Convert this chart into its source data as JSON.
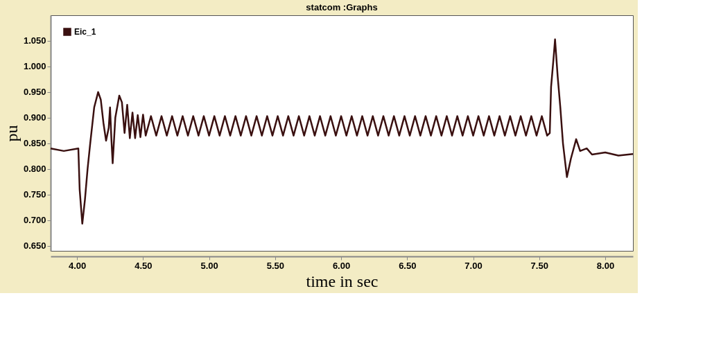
{
  "chart_data": {
    "type": "line",
    "title": "statcom :Graphs",
    "xlabel": "time in sec",
    "ylabel": "pu",
    "legend": "top left",
    "grid": false,
    "marker": "none",
    "line_style": "solid",
    "xlim": [
      3.8,
      8.21
    ],
    "ylim": [
      0.64,
      1.1
    ],
    "xticks": [
      {
        "value": 4,
        "label": "4.00"
      },
      {
        "value": 4.5,
        "label": "4.50"
      },
      {
        "value": 5,
        "label": "5.00"
      },
      {
        "value": 5.5,
        "label": "5.50"
      },
      {
        "value": 6,
        "label": "6.00"
      },
      {
        "value": 6.5,
        "label": "6.50"
      },
      {
        "value": 7,
        "label": "7.00"
      },
      {
        "value": 7.5,
        "label": "7.50"
      },
      {
        "value": 8,
        "label": "8.00"
      }
    ],
    "yticks": [
      {
        "value": 0.65,
        "label": "0.650"
      },
      {
        "value": 0.7,
        "label": "0.700"
      },
      {
        "value": 0.75,
        "label": "0.750"
      },
      {
        "value": 0.8,
        "label": "0.800"
      },
      {
        "value": 0.85,
        "label": "0.850"
      },
      {
        "value": 0.9,
        "label": "0.900"
      },
      {
        "value": 0.95,
        "label": "0.950"
      },
      {
        "value": 1.0,
        "label": "1.000"
      },
      {
        "value": 1.05,
        "label": "1.050"
      }
    ],
    "series": [
      {
        "name": "Eic_1",
        "color": "#3a1010",
        "x": [
          3.8,
          3.9,
          4.01,
          4.02,
          4.04,
          4.06,
          4.08,
          4.1,
          4.13,
          4.16,
          4.18,
          4.2,
          4.22,
          4.24,
          4.25,
          4.26,
          4.27,
          4.29,
          4.32,
          4.34,
          4.36,
          4.38,
          4.4,
          4.42,
          4.44,
          4.46,
          4.48,
          4.5,
          4.52,
          4.56,
          4.6,
          4.64,
          4.68,
          4.72,
          4.76,
          4.8,
          4.84,
          4.88,
          4.92,
          4.96,
          5.0,
          5.04,
          5.08,
          5.12,
          5.16,
          5.2,
          5.24,
          5.28,
          5.32,
          5.36,
          5.4,
          5.44,
          5.48,
          5.52,
          5.56,
          5.6,
          5.64,
          5.68,
          5.72,
          5.76,
          5.8,
          5.84,
          5.88,
          5.92,
          5.96,
          6.0,
          6.04,
          6.08,
          6.12,
          6.16,
          6.2,
          6.24,
          6.28,
          6.32,
          6.36,
          6.4,
          6.44,
          6.48,
          6.52,
          6.56,
          6.6,
          6.64,
          6.68,
          6.72,
          6.76,
          6.8,
          6.84,
          6.88,
          6.92,
          6.96,
          7.0,
          7.04,
          7.08,
          7.12,
          7.16,
          7.2,
          7.24,
          7.28,
          7.32,
          7.36,
          7.4,
          7.44,
          7.48,
          7.52,
          7.56,
          7.58,
          7.59,
          7.61,
          7.62,
          7.64,
          7.66,
          7.68,
          7.71,
          7.74,
          7.78,
          7.81,
          7.86,
          7.9,
          8.0,
          8.1,
          8.21
        ],
        "values": [
          0.84,
          0.835,
          0.84,
          0.76,
          0.693,
          0.74,
          0.8,
          0.85,
          0.92,
          0.95,
          0.935,
          0.89,
          0.855,
          0.88,
          0.92,
          0.86,
          0.811,
          0.9,
          0.943,
          0.93,
          0.87,
          0.925,
          0.86,
          0.91,
          0.86,
          0.905,
          0.862,
          0.906,
          0.865,
          0.903,
          0.865,
          0.903,
          0.865,
          0.903,
          0.865,
          0.903,
          0.865,
          0.903,
          0.865,
          0.903,
          0.865,
          0.903,
          0.865,
          0.903,
          0.865,
          0.903,
          0.865,
          0.903,
          0.865,
          0.903,
          0.865,
          0.903,
          0.865,
          0.903,
          0.865,
          0.903,
          0.865,
          0.903,
          0.865,
          0.903,
          0.865,
          0.903,
          0.865,
          0.903,
          0.865,
          0.903,
          0.865,
          0.903,
          0.865,
          0.903,
          0.865,
          0.903,
          0.865,
          0.903,
          0.865,
          0.903,
          0.865,
          0.903,
          0.865,
          0.903,
          0.865,
          0.903,
          0.865,
          0.903,
          0.865,
          0.903,
          0.865,
          0.903,
          0.865,
          0.903,
          0.865,
          0.903,
          0.865,
          0.903,
          0.865,
          0.903,
          0.865,
          0.903,
          0.865,
          0.903,
          0.865,
          0.903,
          0.865,
          0.903,
          0.865,
          0.87,
          0.96,
          1.02,
          1.053,
          0.98,
          0.92,
          0.85,
          0.784,
          0.82,
          0.858,
          0.835,
          0.84,
          0.828,
          0.832,
          0.826,
          0.829
        ]
      }
    ]
  }
}
